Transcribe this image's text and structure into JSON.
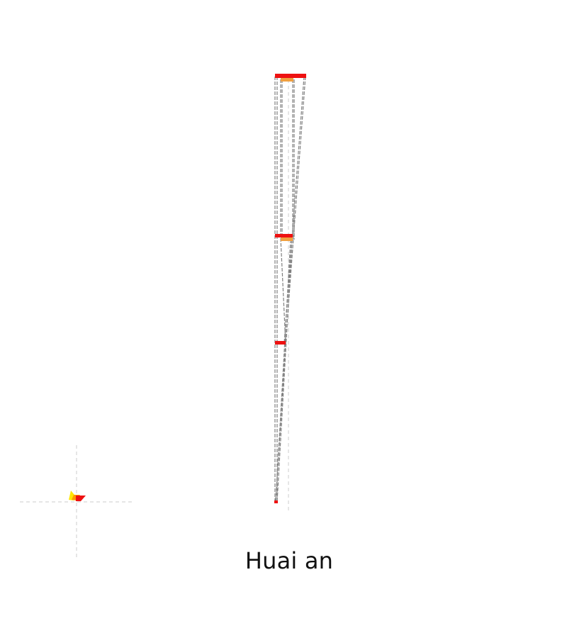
{
  "caption": "Huai an",
  "colors": {
    "background": "#ffffff",
    "bar_primary": "#ee1111",
    "bar_secondary": "#f0a040",
    "connector": "#808080",
    "guide": "#cccccc",
    "marker_yellow": "#ffe600",
    "marker_orange": "#ff9900",
    "marker_red": "#ee1111"
  },
  "icons": {
    "marker": "sankey-marker-icon"
  }
}
